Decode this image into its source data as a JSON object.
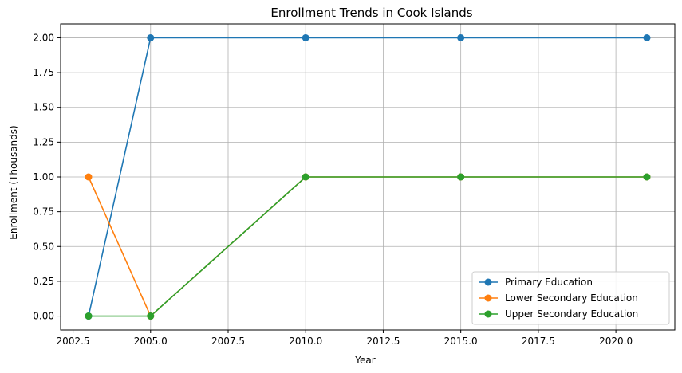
{
  "chart_data": {
    "type": "line",
    "title": "Enrollment Trends in Cook Islands",
    "xlabel": "Year",
    "ylabel": "Enrollment (Thousands)",
    "xlim": [
      2002.1,
      2021.9
    ],
    "ylim": [
      -0.1,
      2.1
    ],
    "x_ticks": [
      2002.5,
      2005.0,
      2007.5,
      2010.0,
      2012.5,
      2015.0,
      2017.5,
      2020.0
    ],
    "x_tick_labels": [
      "2002.5",
      "2005.0",
      "2007.5",
      "2010.0",
      "2012.5",
      "2015.0",
      "2017.5",
      "2020.0"
    ],
    "y_ticks": [
      0.0,
      0.25,
      0.5,
      0.75,
      1.0,
      1.25,
      1.5,
      1.75,
      2.0
    ],
    "y_tick_labels": [
      "0.00",
      "0.25",
      "0.50",
      "0.75",
      "1.00",
      "1.25",
      "1.50",
      "1.75",
      "2.00"
    ],
    "grid": true,
    "legend_position": "bottom-right",
    "x": [
      2003,
      2005,
      2010,
      2015,
      2021
    ],
    "series": [
      {
        "name": "Primary Education",
        "color": "#1f77b4",
        "values": [
          0,
          2,
          2,
          2,
          2
        ]
      },
      {
        "name": "Lower Secondary Education",
        "color": "#ff7f0e",
        "values": [
          1,
          0,
          1,
          1,
          1
        ]
      },
      {
        "name": "Upper Secondary Education",
        "color": "#2ca02c",
        "values": [
          0,
          0,
          1,
          1,
          1
        ]
      }
    ]
  }
}
